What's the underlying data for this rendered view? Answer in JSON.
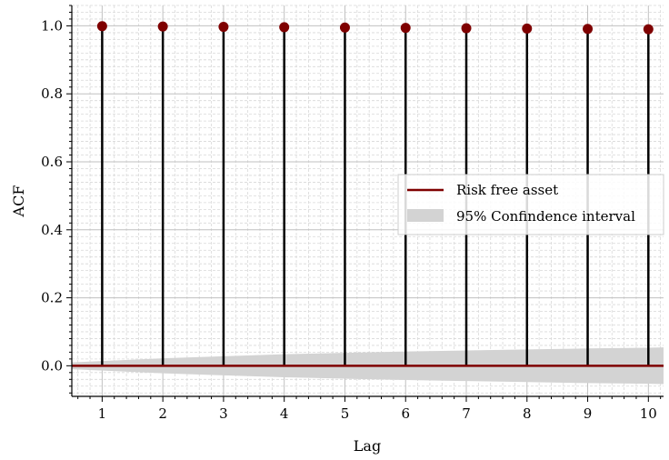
{
  "chart_data": {
    "type": "stem",
    "xlabel": "Lag",
    "ylabel": "ACF",
    "xlim": [
      0.5,
      10.25
    ],
    "ylim": [
      -0.09,
      1.06
    ],
    "xticks": [
      1,
      2,
      3,
      4,
      5,
      6,
      7,
      8,
      9,
      10
    ],
    "yticks": [
      0.0,
      0.2,
      0.4,
      0.6,
      0.8,
      1.0
    ],
    "ytick_labels": [
      "0.0",
      "0.2",
      "0.4",
      "0.6",
      "0.8",
      "1.0"
    ],
    "grid": true,
    "minor_grid": true,
    "legend_position": "right",
    "series": [
      {
        "name": "Risk free asset",
        "x": [
          1,
          2,
          3,
          4,
          5,
          6,
          7,
          8,
          9,
          10
        ],
        "values": [
          0.999,
          0.998,
          0.997,
          0.996,
          0.995,
          0.994,
          0.993,
          0.992,
          0.991,
          0.99
        ],
        "color": "#7f0000",
        "stem_color": "#000000"
      }
    ],
    "confidence_interval": {
      "name": "95% Confindence interval",
      "x": [
        0.5,
        1,
        2,
        3,
        4,
        5,
        6,
        7,
        8,
        9,
        10,
        10.25
      ],
      "upper": [
        0.01,
        0.014,
        0.022,
        0.028,
        0.034,
        0.038,
        0.042,
        0.045,
        0.048,
        0.051,
        0.053,
        0.054
      ],
      "lower": [
        -0.01,
        -0.014,
        -0.022,
        -0.028,
        -0.034,
        -0.038,
        -0.042,
        -0.045,
        -0.048,
        -0.051,
        -0.053,
        -0.054
      ],
      "color": "#d3d3d3"
    }
  }
}
